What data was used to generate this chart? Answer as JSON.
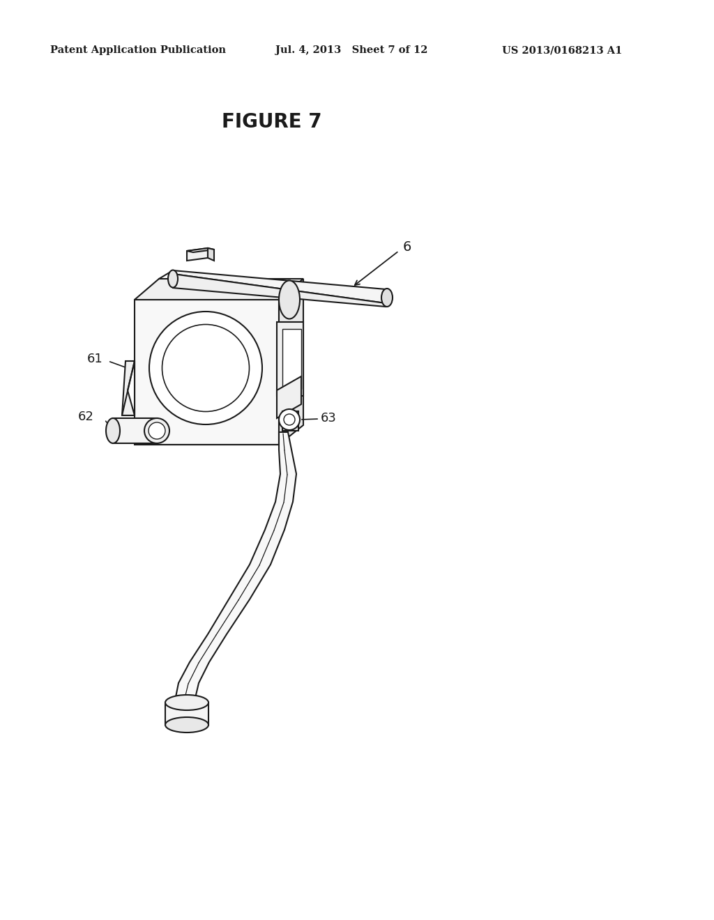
{
  "header_left": "Patent Application Publication",
  "header_mid": "Jul. 4, 2013   Sheet 7 of 12",
  "header_right": "US 2013/0168213 A1",
  "figure_title": "FIGURE 7",
  "label_6": "6",
  "label_61": "61",
  "label_62": "62",
  "label_63": "63",
  "bg_color": "#ffffff",
  "line_color": "#1a1a1a",
  "header_fontsize": 10.5,
  "figure_fontsize": 20,
  "label_fontsize": 13
}
